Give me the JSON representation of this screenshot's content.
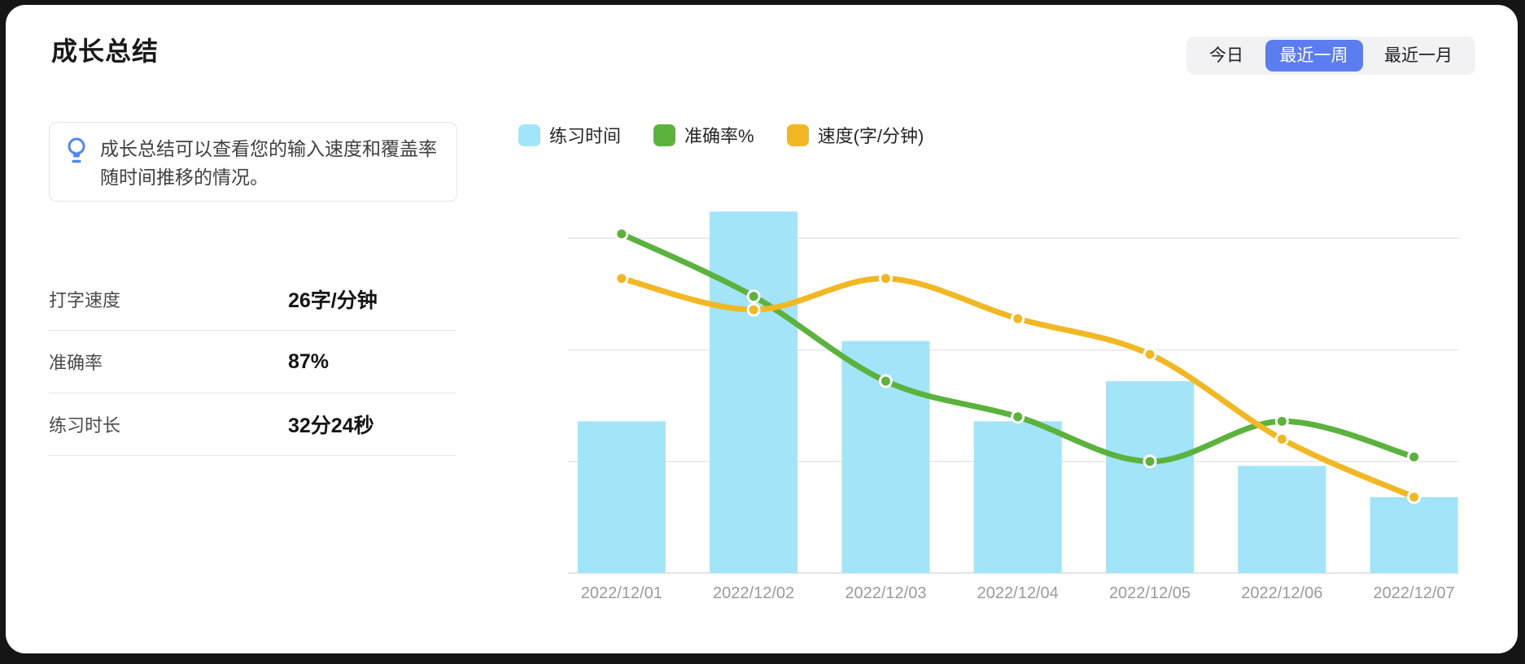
{
  "page": {
    "title": "成长总结"
  },
  "time_filter": {
    "options": [
      {
        "label": "今日",
        "selected": false
      },
      {
        "label": "最近一周",
        "selected": true
      },
      {
        "label": "最近一月",
        "selected": false
      }
    ]
  },
  "tip": {
    "icon": "lightbulb-icon",
    "text": "成长总结可以查看您的输入速度和覆盖率随时间推移的情况。"
  },
  "stats": [
    {
      "label": "打字速度",
      "value": "26字/分钟"
    },
    {
      "label": "准确率",
      "value": "87%"
    },
    {
      "label": "练习时长",
      "value": "32分24秒"
    }
  ],
  "colors": {
    "accent_blue": "#5b7df0",
    "segmented_bg": "#f2f2f4",
    "bar_blue": "#a2e4f8",
    "line_green": "#5bb33d",
    "line_yellow": "#f2b824",
    "gridline": "#e6e6e6",
    "axis_line": "#dcdcdc",
    "axis_label": "#9a9a9a",
    "bulb_blue": "#4e86f7"
  },
  "chart_data": {
    "type": "bar",
    "subtype": "bar+line combo",
    "categories": [
      "2022/12/01",
      "2022/12/02",
      "2022/12/03",
      "2022/12/04",
      "2022/12/05",
      "2022/12/06",
      "2022/12/07"
    ],
    "series": [
      {
        "name": "练习时间",
        "type": "bar",
        "color": "#a2e4f8",
        "values": [
          34,
          81,
          52,
          34,
          43,
          24,
          17
        ]
      },
      {
        "name": "准确率%",
        "type": "line",
        "color": "#5bb33d",
        "values": [
          76,
          62,
          43,
          35,
          25,
          34,
          26
        ]
      },
      {
        "name": "速度(字/分钟)",
        "type": "line",
        "color": "#f2b824",
        "values": [
          66,
          59,
          66,
          57,
          49,
          30,
          17
        ]
      }
    ],
    "xlabel": "",
    "ylabel": "",
    "ylim": [
      0,
      100
    ],
    "gridlines": [
      25,
      50,
      75
    ],
    "grid": true,
    "y_tick_labels_visible": false,
    "legend_position": "top"
  }
}
